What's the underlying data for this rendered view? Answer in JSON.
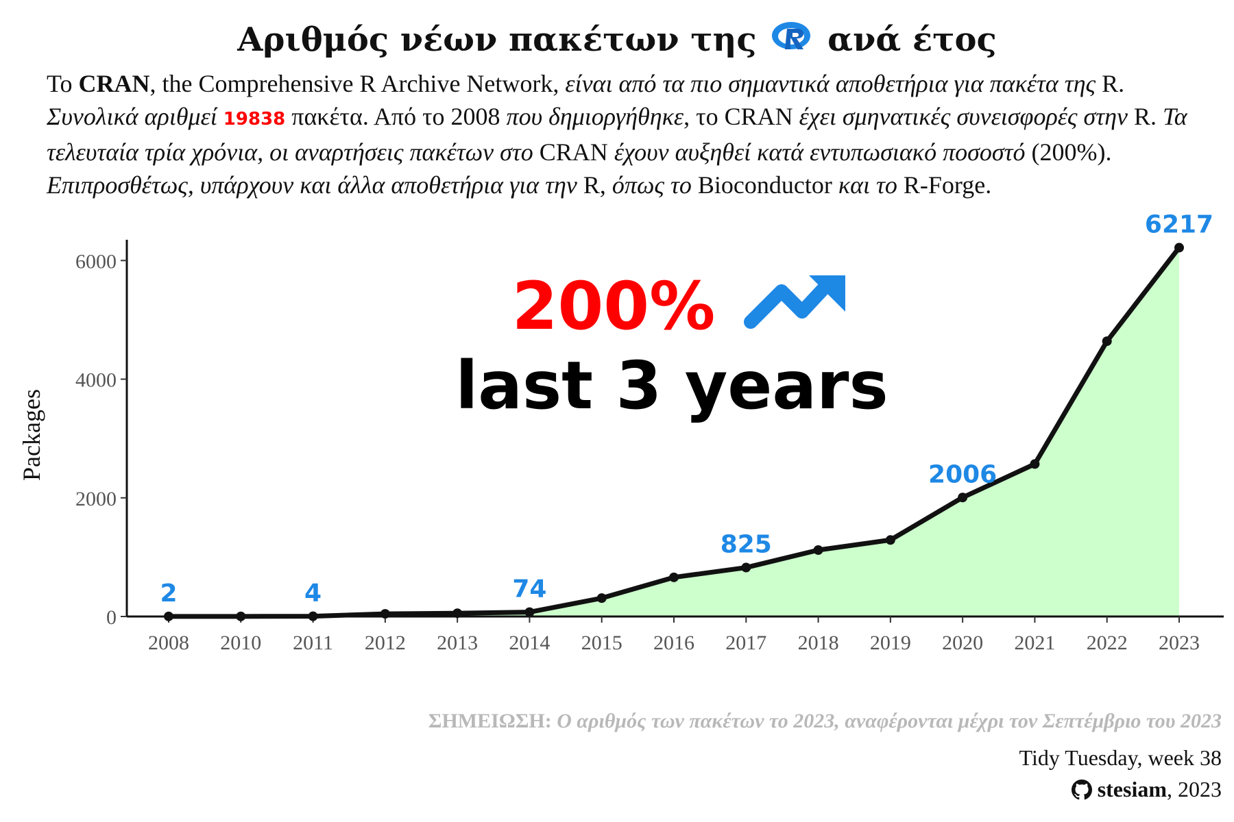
{
  "title": {
    "before": "Αριθμός νέων πακέτων της",
    "logo_letter": "R",
    "after": "ανά έτος"
  },
  "subtitle": {
    "p1": "Το ",
    "cran": "CRAN",
    "p2": ", the Comprehensive R Archive Network, ",
    "p3": "είναι από τα πιο σημαντικά αποθετήρια για πακέτα της",
    "p4": " R. ",
    "p5": "Συνολικά αριθμεί",
    "total": "19838",
    "p6": " πακέτα. Από το 2008 ",
    "p7": "που δημιοργήθηκε",
    "p8": ", το CRAN ",
    "p9": "έχει σμηνατικές συνεισφορές στην",
    "p10": " R. ",
    "p11": "Τα τελευταία τρία χρόνια, οι αναρτήσεις πακέτων στο",
    "p12": " CRAN ",
    "p13": "έχουν αυξηθεί κατά εντυπωσιακό ποσοστό",
    "p14": " (200%). ",
    "p15": "Επιπροσθέτως, υπάρχουν και άλλα αποθετήρια για την",
    "p16": " R, ",
    "p17": "όπως το",
    "p18": " Bioconductor ",
    "p19": "και το",
    "p20": " R-Forge."
  },
  "chart_data": {
    "type": "area",
    "categories": [
      "2008",
      "2010",
      "2011",
      "2012",
      "2013",
      "2014",
      "2015",
      "2016",
      "2017",
      "2018",
      "2019",
      "2020",
      "2021",
      "2022",
      "2023"
    ],
    "series": [
      {
        "values": [
          2,
          2,
          4,
          45,
          55,
          74,
          310,
          660,
          825,
          1120,
          1290,
          2006,
          2570,
          4640,
          6217
        ]
      }
    ],
    "labeled_points": [
      {
        "category": "2008",
        "value": "2"
      },
      {
        "category": "2011",
        "value": "4"
      },
      {
        "category": "2014",
        "value": "74"
      },
      {
        "category": "2017",
        "value": "825"
      },
      {
        "category": "2020",
        "value": "2006"
      },
      {
        "category": "2023",
        "value": "6217"
      }
    ],
    "ylabel": "Packages",
    "xlabel": "",
    "ylim": [
      0,
      7000
    ],
    "yticks": [
      0,
      2000,
      4000,
      6000
    ],
    "grid": false,
    "annotation": {
      "big": "200%",
      "sub": "last 3 years",
      "icon": "trending-up-icon"
    },
    "colors": {
      "line": "#111111",
      "fill": "#ccffcc",
      "label": "#1e88e5",
      "accent": "#ff0000"
    }
  },
  "footer": {
    "note_head": "ΣΗΜΕΙΩΣΗ:",
    "note_body": " Ο αριθμός των πακέτων το 2023, αναφέρονται μέχρι τον Σεπτέμβριο του 2023",
    "credit_line1": "Tidy Tuesday, week 38",
    "credit_user": "stesiam",
    "credit_year": ", 2023",
    "icon": "github-icon"
  }
}
